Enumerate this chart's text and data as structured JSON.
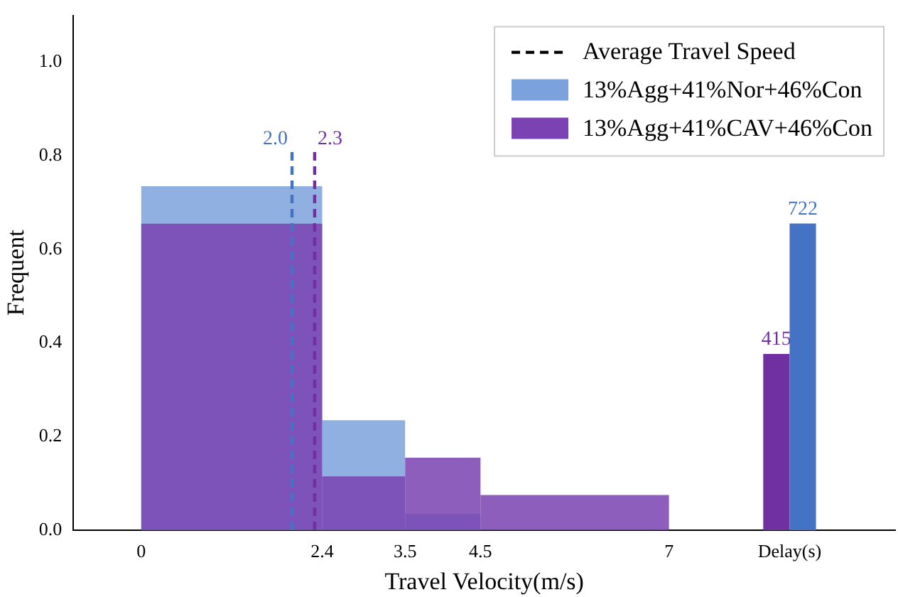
{
  "chart_data": {
    "type": "histogram",
    "xlabel": "Travel Velocity(m/s)",
    "ylabel": "Frequent",
    "xlim": [
      -0.9,
      10
    ],
    "xticks": [
      0,
      2.4,
      3.5,
      4.5,
      7,
      {
        "value": 8.6,
        "label": "Delay(s)"
      }
    ],
    "ylim": [
      0,
      1.1
    ],
    "yticks": [
      {
        "value": 0,
        "label": "0.0"
      },
      0.2,
      0.4,
      0.6,
      0.8,
      {
        "value": 1,
        "label": "1.0"
      }
    ],
    "y2lim": [
      0,
      1212
    ],
    "bins": [
      0,
      2.4,
      3.5,
      4.5,
      7
    ],
    "legend": "top right",
    "line_style": "dashed",
    "series": [
      {
        "name": "13%Agg+41%Nor+46%Con",
        "color": "#7ba2dc",
        "values": [
          0.735,
          0.235,
          0.035,
          0
        ]
      },
      {
        "name": "13%Agg+41%CAV+46%Con",
        "color": "#7a42b2",
        "values": [
          0.655,
          0.115,
          0.155,
          0.075
        ]
      },
      {
        "type": "bar",
        "axis": "y2",
        "color": "#7030a0",
        "x": [
          8.425
        ],
        "values": [
          415
        ],
        "value_labels": [
          "415"
        ]
      },
      {
        "type": "bar",
        "axis": "y2",
        "color": "#4472c4",
        "x": [
          8.775
        ],
        "values": [
          722
        ],
        "value_labels": [
          "722"
        ]
      }
    ],
    "ref_lines": [
      {
        "axis": "x",
        "value": 2.0,
        "label": "2.0",
        "color": "#4472c4"
      },
      {
        "axis": "x",
        "value": 2.3,
        "label": "2.3",
        "color": "#7030a0"
      }
    ],
    "annotations": [
      "Average Travel Speed"
    ]
  }
}
